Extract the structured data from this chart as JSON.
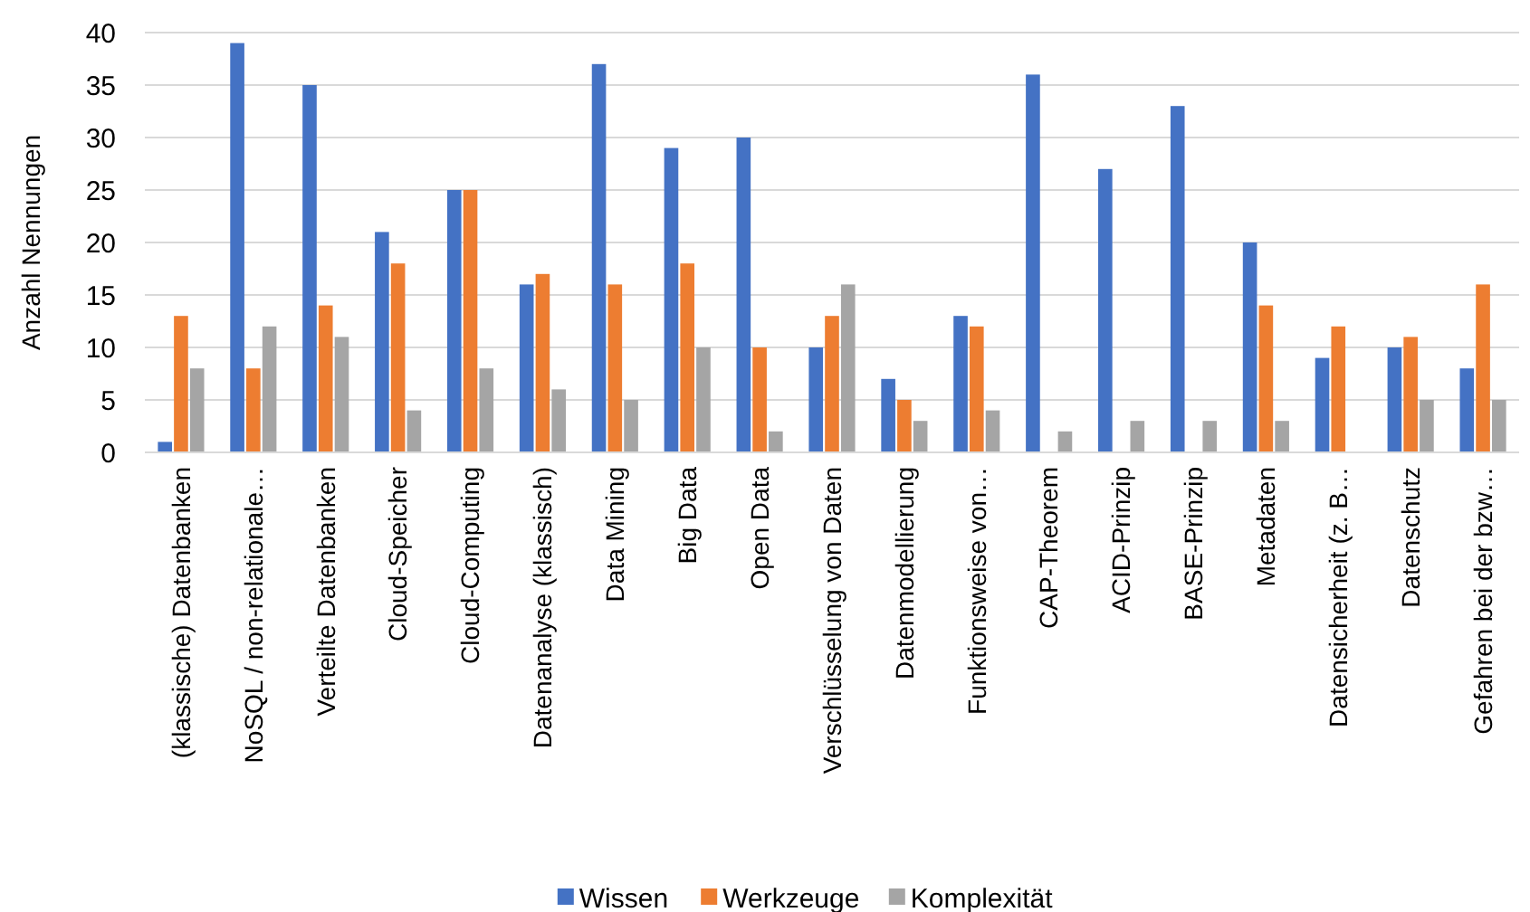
{
  "chart_data": {
    "type": "bar",
    "ylabel": "Anzahl Nennungen",
    "categories": [
      "(klassische) Datenbanken",
      "NoSQL / non-relationale…",
      "Verteilte Datenbanken",
      "Cloud-Speicher",
      "Cloud-Computing",
      "Datenanalyse (klassisch)",
      "Data Mining",
      "Big Data",
      "Open Data",
      "Verschlüsselung von Daten",
      "Datenmodellierung",
      "Funktionsweise von…",
      "CAP-Theorem",
      "ACID-Prinzip",
      "BASE-Prinzip",
      "Metadaten",
      "Datensicherheit (z. B…",
      "Datenschutz",
      "Gefahren bei der bzw…"
    ],
    "series": [
      {
        "name": "Wissen",
        "color": "#4472c4",
        "values": [
          1,
          39,
          35,
          21,
          25,
          16,
          37,
          29,
          30,
          10,
          7,
          13,
          36,
          27,
          33,
          20,
          9,
          10,
          8
        ]
      },
      {
        "name": "Werkzeuge",
        "color": "#ed7d31",
        "values": [
          13,
          8,
          14,
          18,
          25,
          17,
          16,
          18,
          10,
          13,
          5,
          12,
          0,
          0,
          0,
          14,
          12,
          11,
          16
        ]
      },
      {
        "name": "Komplexität",
        "color": "#a5a5a5",
        "values": [
          8,
          12,
          11,
          4,
          8,
          6,
          5,
          10,
          2,
          16,
          3,
          4,
          2,
          3,
          3,
          3,
          0,
          5,
          5
        ]
      }
    ],
    "ylim": [
      0,
      40
    ],
    "yticks": [
      0,
      5,
      10,
      15,
      20,
      25,
      30,
      35,
      40
    ],
    "grid": "y",
    "legend": "bottom"
  }
}
